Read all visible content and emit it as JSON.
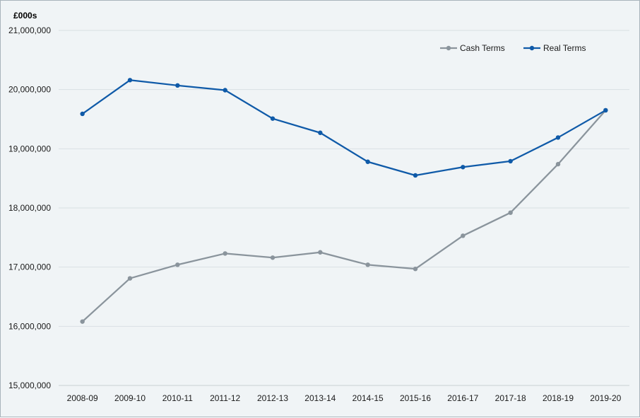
{
  "chart_data": {
    "type": "line",
    "unit_label": "£000s",
    "categories": [
      "2008-09",
      "2009-10",
      "2010-11",
      "2011-12",
      "2012-13",
      "2013-14",
      "2014-15",
      "2015-16",
      "2016-17",
      "2017-18",
      "2018-19",
      "2019-20"
    ],
    "ylim": [
      15000000,
      21000000
    ],
    "yticks": [
      15000000,
      16000000,
      17000000,
      18000000,
      19000000,
      20000000,
      21000000
    ],
    "ytick_labels": [
      "15,000,000",
      "16,000,000",
      "17,000,000",
      "18,000,000",
      "19,000,000",
      "20,000,000",
      "21,000,000"
    ],
    "grid": true,
    "legend_position": "top-right",
    "series": [
      {
        "name": "Cash Terms",
        "color": "#8a949c",
        "values": [
          16080000,
          16810000,
          17040000,
          17230000,
          17160000,
          17250000,
          17040000,
          16970000,
          17530000,
          17920000,
          18740000,
          19650000
        ]
      },
      {
        "name": "Real Terms",
        "color": "#0f5aa8",
        "values": [
          19590000,
          20160000,
          20070000,
          19990000,
          19510000,
          19270000,
          18780000,
          18550000,
          18690000,
          18790000,
          19190000,
          19650000
        ]
      }
    ]
  }
}
